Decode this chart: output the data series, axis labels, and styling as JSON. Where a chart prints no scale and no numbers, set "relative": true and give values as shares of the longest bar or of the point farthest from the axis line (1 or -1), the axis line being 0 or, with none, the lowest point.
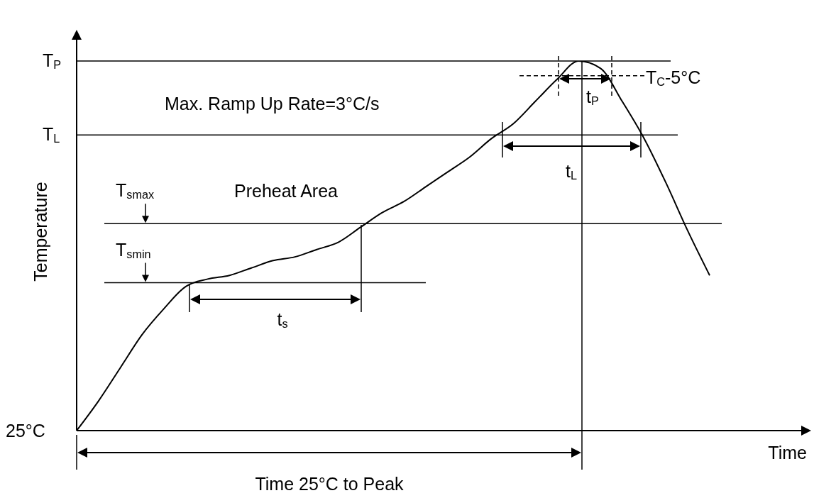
{
  "chart_data": {
    "type": "line",
    "relative": true,
    "xlabel": "Time",
    "ylabel": "Temperature",
    "tick_labels": false,
    "marker": "none",
    "line_style": "solid",
    "categories": [
      null,
      null,
      null,
      null,
      null,
      null,
      null,
      null,
      null,
      null,
      null,
      null,
      null,
      null,
      null,
      null,
      null,
      null,
      null,
      null,
      null,
      null,
      null,
      null,
      null,
      null,
      null,
      null,
      null,
      null
    ],
    "series": [
      {
        "color": "#000000",
        "values": [
          0,
          0.08,
          0.17,
          0.26,
          0.33,
          0.39,
          0.41,
          0.42,
          0.44,
          0.46,
          0.47,
          0.49,
          0.51,
          0.55,
          0.59,
          0.62,
          0.66,
          0.7,
          0.74,
          0.79,
          0.83,
          0.89,
          0.95,
          1,
          0.98,
          0.89,
          0.79,
          0.67,
          0.54,
          0.42
        ]
      }
    ],
    "ref_lines": [
      {
        "axis": "y",
        "value": 1,
        "label": "T$_{P}$"
      },
      {
        "axis": "y",
        "value": 0.8,
        "label": "T$_{L}$"
      },
      {
        "axis": "y",
        "value": 0.56,
        "label": "T$_{smax}$"
      },
      {
        "axis": "y",
        "value": 0.4,
        "label": "T$_{smin}$"
      },
      {
        "axis": "y",
        "value": 0.96,
        "label": "T$_{C}$-5°C",
        "line_style": "dashed"
      }
    ],
    "annotations": [
      "Max. Ramp Up Rate=3°C/s",
      "Preheat Area",
      "t$_{s}$",
      "t$_{L}$",
      "t$_{P}$",
      "Time 25°C to Peak",
      "25°C"
    ]
  }
}
